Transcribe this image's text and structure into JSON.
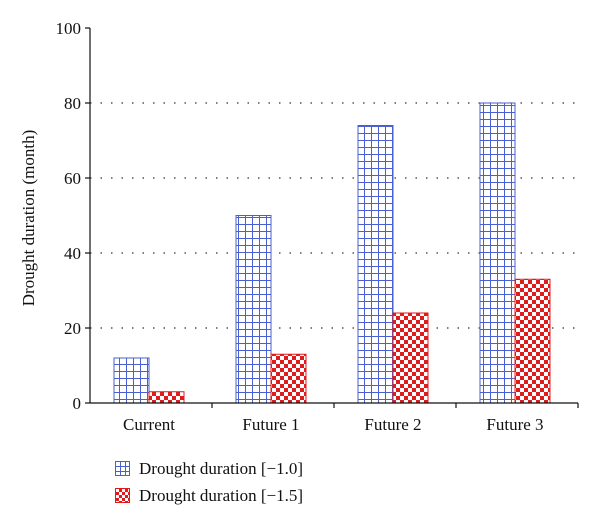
{
  "chart_data": {
    "type": "bar",
    "categories": [
      "Current",
      "Future 1",
      "Future 2",
      "Future 3"
    ],
    "series": [
      {
        "name": "Drought duration [−1.0]",
        "values": [
          12,
          50,
          74,
          80
        ],
        "color": "#4a5fd0",
        "pattern": "grid"
      },
      {
        "name": "Drought duration [−1.5]",
        "values": [
          3,
          13,
          24,
          33
        ],
        "color": "#e01b1b",
        "pattern": "checker"
      }
    ],
    "title": "",
    "xlabel": "",
    "ylabel": "Drought duration (month)",
    "ylim": [
      0,
      100
    ],
    "yticks": [
      0,
      20,
      40,
      60,
      80,
      100
    ],
    "grid": "horizontal dotted",
    "legend_position": "bottom-left"
  }
}
